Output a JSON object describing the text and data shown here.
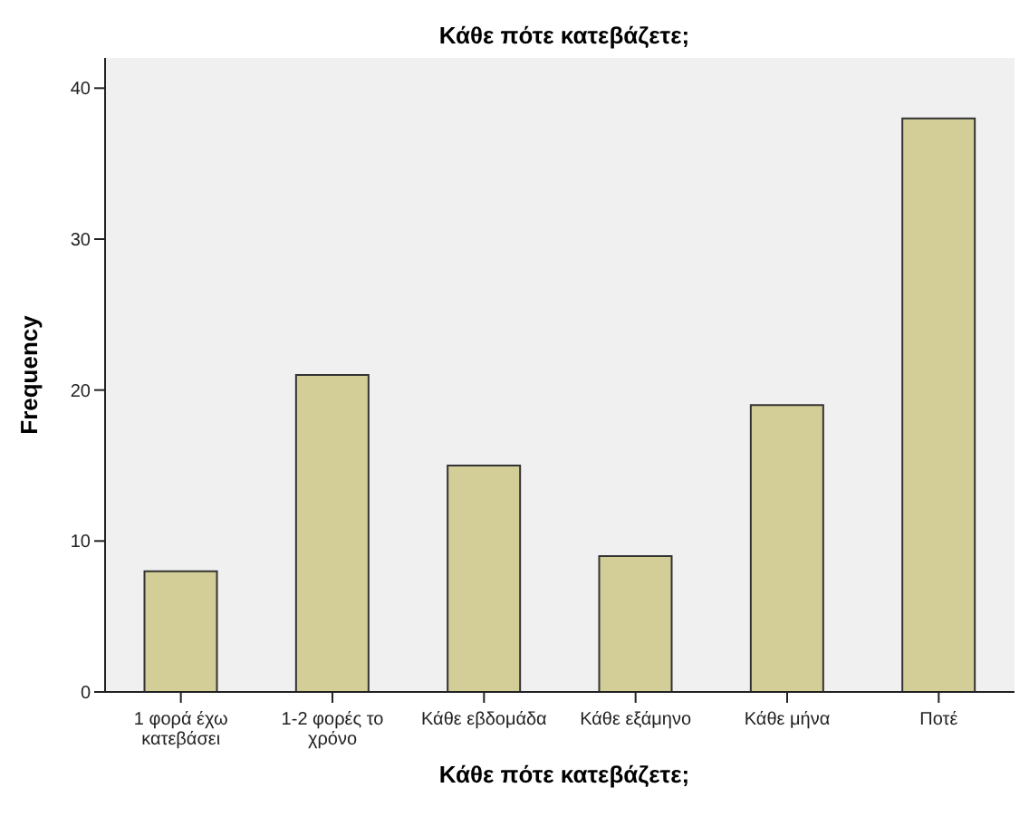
{
  "chart_data": {
    "type": "bar",
    "title": "Κάθε πότε κατεβάζετε;",
    "xlabel": "Κάθε πότε κατεβάζετε;",
    "ylabel": "Frequency",
    "categories": [
      "1 φορά έχω κατεβάσει",
      "1-2 φορές το χρόνο",
      "Κάθε εβδομάδα",
      "Κάθε εξάμηνο",
      "Κάθε μήνα",
      "Ποτέ"
    ],
    "values": [
      8,
      21,
      15,
      9,
      19,
      38
    ],
    "color": "#d3ce97",
    "ylim": [
      0,
      42
    ],
    "yticks": [
      0,
      10,
      20,
      30,
      40
    ],
    "grid": false,
    "legend": false
  }
}
